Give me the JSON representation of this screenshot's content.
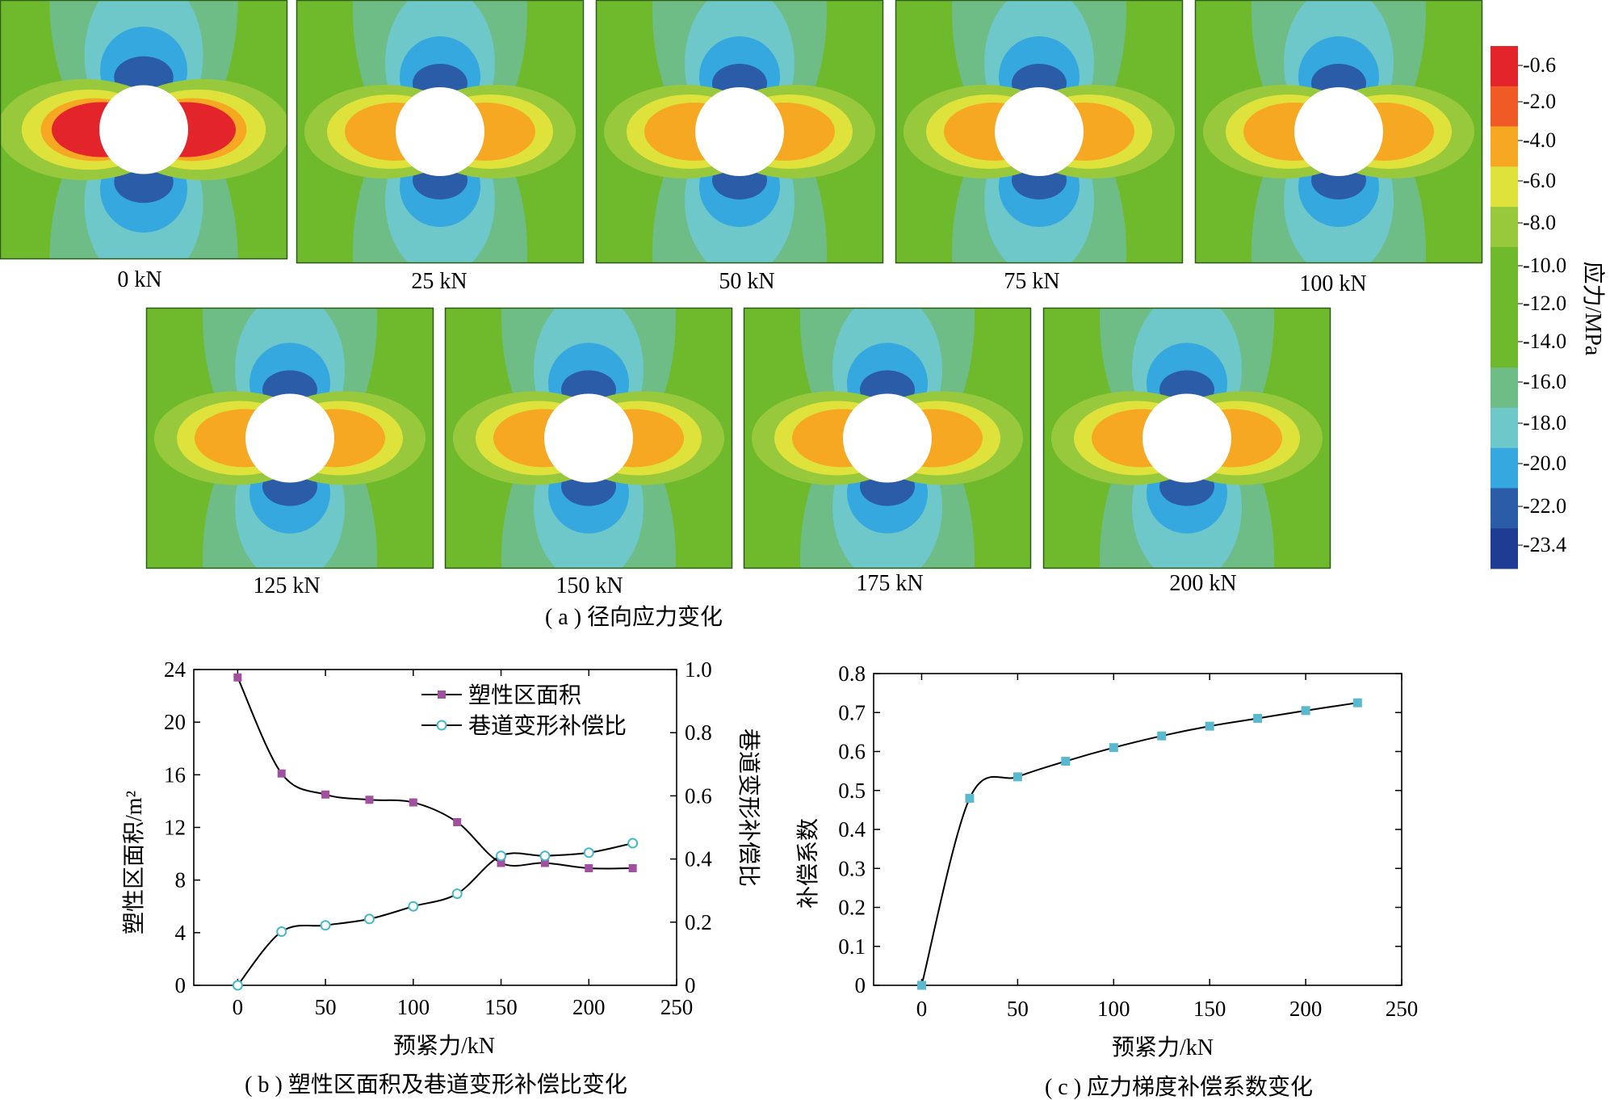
{
  "colorbar": {
    "title": "应力/MPa",
    "labels": [
      "-0.6",
      "-2.0",
      "-4.0",
      "-6.0",
      "-8.0",
      "-10.0",
      "-12.0",
      "-14.0",
      "-16.0",
      "-18.0",
      "-20.0",
      "-22.0",
      "-23.4"
    ],
    "colors": [
      "#e3242b",
      "#f05a24",
      "#f7a823",
      "#dfe23b",
      "#98c93c",
      "#6fba2c",
      "#6fba2c",
      "#6fba2c",
      "#6fbd86",
      "#6ec7c8",
      "#35a8e0",
      "#2b5ca8",
      "#1f3c94"
    ]
  },
  "panel_a": {
    "caption": "( a ) 径向应力变化",
    "labels": [
      "0 kN",
      "25 kN",
      "50 kN",
      "75 kN",
      "100 kN",
      "125 kN",
      "150 kN",
      "175  kN",
      "200  kN"
    ],
    "palette": {
      "background": "#6fba2c",
      "lobe_outer": "#6fbd86",
      "lobe_mid": "#6ec7c8",
      "lobe_inner": "#35a8e0",
      "lobe_core": "#2b5ca8",
      "side_outer": "#98c93c",
      "side_mid": "#dfe23b",
      "side_inner": "#f7a823",
      "side_core": "#e3242b",
      "hole": "#ffffff"
    }
  },
  "chart_data": [
    {
      "type": "line",
      "title": "( b ) 塑性区面积及巷道变形补偿比变化",
      "xlabel": "预紧力/kN",
      "ylabel": "塑性区面积/m²",
      "ylabel_right": "巷道变形补偿比",
      "xlim": [
        -25,
        250
      ],
      "ylim": [
        0,
        24
      ],
      "ylim_right": [
        0,
        1.0
      ],
      "xticks": [
        "0",
        "50",
        "100",
        "150",
        "200",
        "250"
      ],
      "yticks": [
        "0",
        "4",
        "8",
        "12",
        "16",
        "20",
        "24"
      ],
      "yticks_right": [
        "0",
        "0.2",
        "0.4",
        "0.6",
        "0.8",
        "1.0"
      ],
      "legend": "top-right",
      "series": [
        {
          "name": "塑性区面积",
          "axis": "left",
          "color": "#a0509f",
          "marker": "square",
          "x": [
            0,
            25,
            50,
            75,
            100,
            125,
            150,
            175,
            200,
            225
          ],
          "y": [
            23.4,
            16.1,
            14.5,
            14.1,
            13.9,
            12.4,
            9.3,
            9.3,
            8.9,
            8.9
          ]
        },
        {
          "name": "巷道变形补偿比",
          "axis": "right",
          "color": "#46b9c8",
          "marker": "circle",
          "x": [
            0,
            25,
            50,
            75,
            100,
            125,
            150,
            175,
            200,
            225
          ],
          "y": [
            0.0,
            0.17,
            0.19,
            0.21,
            0.25,
            0.29,
            0.41,
            0.41,
            0.42,
            0.45
          ]
        }
      ]
    },
    {
      "type": "line",
      "title": "( c ) 应力梯度补偿系数变化",
      "xlabel": "预紧力/kN",
      "ylabel": "补偿系数",
      "xlim": [
        -25,
        250
      ],
      "ylim": [
        0,
        0.8
      ],
      "xticks": [
        "0",
        "50",
        "100",
        "150",
        "200",
        "250"
      ],
      "yticks": [
        "0",
        "0.1",
        "0.2",
        "0.3",
        "0.4",
        "0.5",
        "0.6",
        "0.7",
        "0.8"
      ],
      "series": [
        {
          "color": "#5bb9cf",
          "marker": "square",
          "x": [
            0,
            25,
            50,
            75,
            100,
            125,
            150,
            175,
            200,
            227
          ],
          "y": [
            0.0,
            0.48,
            0.535,
            0.575,
            0.61,
            0.64,
            0.665,
            0.685,
            0.705,
            0.725
          ]
        }
      ]
    }
  ]
}
